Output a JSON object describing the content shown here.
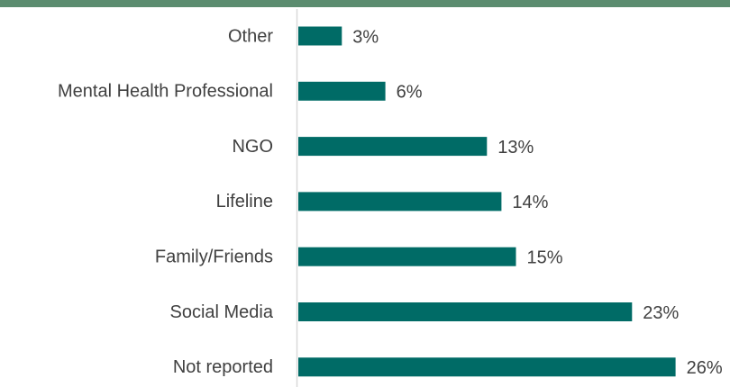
{
  "chart_data": {
    "type": "bar",
    "orientation": "horizontal",
    "categories": [
      "Other",
      "Mental Health Professional",
      "NGO",
      "Lifeline",
      "Family/Friends",
      "Social Media",
      "Not reported"
    ],
    "values": [
      3,
      6,
      13,
      14,
      15,
      23,
      26
    ],
    "value_labels": [
      "3%",
      "6%",
      "13%",
      "14%",
      "15%",
      "23%",
      "26%"
    ],
    "color": "#006b66"
  }
}
